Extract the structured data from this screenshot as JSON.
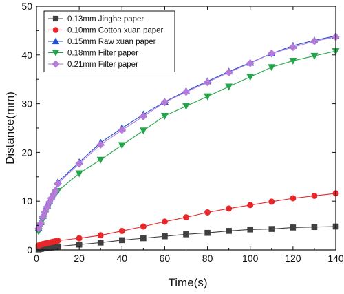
{
  "chart_data": {
    "type": "line",
    "xlabel": "Time(s)",
    "ylabel": "Distance(mm)",
    "xlim": [
      0,
      140
    ],
    "ylim": [
      0,
      50
    ],
    "xticks": [
      0,
      20,
      40,
      60,
      80,
      100,
      120,
      140
    ],
    "yticks": [
      0,
      10,
      20,
      30,
      40,
      50
    ],
    "grid": false,
    "legend_position": "top-left",
    "series": [
      {
        "name": "0.13mm Jinghe paper",
        "marker": "square",
        "color": "#404040",
        "x": [
          1,
          2,
          3,
          4,
          5,
          6,
          7,
          8,
          9,
          10,
          20,
          30,
          40,
          50,
          60,
          70,
          80,
          90,
          100,
          110,
          120,
          130,
          140
        ],
        "y": [
          0.1,
          0.2,
          0.3,
          0.35,
          0.4,
          0.45,
          0.5,
          0.55,
          0.6,
          0.7,
          1.1,
          1.5,
          2.0,
          2.4,
          2.8,
          3.2,
          3.5,
          3.9,
          4.2,
          4.3,
          4.6,
          4.7,
          4.8
        ]
      },
      {
        "name": "0.10mm Cotton xuan paper",
        "marker": "circle",
        "color": "#e8272b",
        "x": [
          1,
          2,
          3,
          4,
          5,
          6,
          7,
          8,
          9,
          10,
          20,
          30,
          40,
          50,
          60,
          70,
          80,
          90,
          100,
          110,
          120,
          130,
          140
        ],
        "y": [
          0.9,
          1.1,
          1.2,
          1.3,
          1.4,
          1.5,
          1.6,
          1.7,
          1.8,
          1.9,
          2.4,
          3.0,
          3.9,
          4.8,
          5.8,
          6.7,
          7.7,
          8.5,
          9.2,
          9.9,
          10.6,
          11.1,
          11.6
        ]
      },
      {
        "name": "0.15mm Raw xuan paper",
        "marker": "triangle-up",
        "color": "#1f4fd1",
        "x": [
          1,
          2,
          3,
          4,
          5,
          6,
          7,
          8,
          9,
          10,
          20,
          30,
          40,
          50,
          60,
          70,
          80,
          90,
          100,
          110,
          120,
          130,
          140
        ],
        "y": [
          4.5,
          5.7,
          7.0,
          8.1,
          9.1,
          10.0,
          10.8,
          11.6,
          12.3,
          13.9,
          18.0,
          22.0,
          25.0,
          27.8,
          30.4,
          32.6,
          34.6,
          36.6,
          38.4,
          40.3,
          41.9,
          43.0,
          43.9
        ]
      },
      {
        "name": "0.18mm Filter paper",
        "marker": "triangle-down",
        "color": "#23a64a",
        "x": [
          1,
          2,
          3,
          4,
          5,
          6,
          7,
          8,
          9,
          10,
          20,
          30,
          40,
          50,
          60,
          70,
          80,
          90,
          100,
          110,
          120,
          130,
          140
        ],
        "y": [
          3.8,
          5.0,
          6.3,
          7.4,
          8.4,
          9.3,
          10.2,
          11.0,
          11.8,
          12.1,
          15.7,
          18.5,
          21.5,
          24.5,
          27.5,
          29.5,
          31.5,
          33.5,
          35.5,
          37.5,
          38.8,
          39.8,
          40.8
        ]
      },
      {
        "name": "0.21mm Filter paper",
        "marker": "diamond",
        "color": "#b57ad9",
        "x": [
          1,
          2,
          3,
          4,
          5,
          6,
          7,
          8,
          9,
          10,
          20,
          30,
          40,
          50,
          60,
          70,
          80,
          90,
          100,
          110,
          120,
          130,
          140
        ],
        "y": [
          4.4,
          5.4,
          6.8,
          7.8,
          8.8,
          9.8,
          10.6,
          11.4,
          12.2,
          13.6,
          17.7,
          21.6,
          24.6,
          27.4,
          30.3,
          32.4,
          34.4,
          36.4,
          38.3,
          40.3,
          41.6,
          42.8,
          43.7
        ]
      }
    ]
  }
}
